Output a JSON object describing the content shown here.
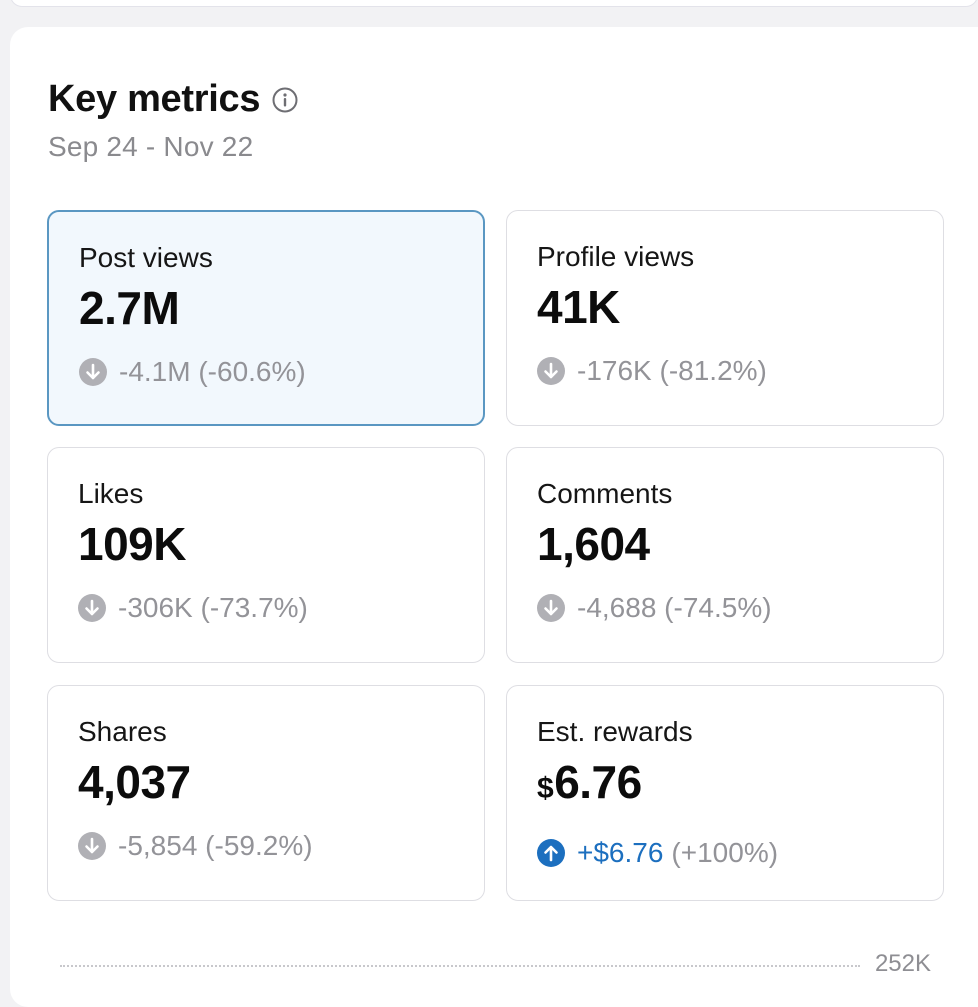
{
  "header": {
    "title": "Key metrics",
    "date_range": "Sep 24 - Nov 22"
  },
  "metrics": [
    {
      "label": "Post views",
      "value": "2.7M",
      "change": "-4.1M (-60.6%)",
      "direction": "down"
    },
    {
      "label": "Profile views",
      "value": "41K",
      "change": "-176K (-81.2%)",
      "direction": "down"
    },
    {
      "label": "Likes",
      "value": "109K",
      "change": "-306K (-73.7%)",
      "direction": "down"
    },
    {
      "label": "Comments",
      "value": "1,604",
      "change": "-4,688 (-74.5%)",
      "direction": "down"
    },
    {
      "label": "Shares",
      "value": "4,037",
      "change": "-5,854 (-59.2%)",
      "direction": "down"
    },
    {
      "label": "Est. rewards",
      "currency": "$",
      "value": "6.76",
      "change_amount": "+$6.76",
      "change_pct": "(+100%)",
      "direction": "up"
    }
  ],
  "chart": {
    "max_label": "252K"
  },
  "colors": {
    "selected_border": "#5a97c2",
    "selected_bg": "#f2f8fd",
    "down_icon": "#b0b0b5",
    "up_icon": "#1c6fbf"
  },
  "icons": {
    "info": "info-icon",
    "down": "arrow-down-circle-icon",
    "up": "arrow-up-circle-icon"
  }
}
